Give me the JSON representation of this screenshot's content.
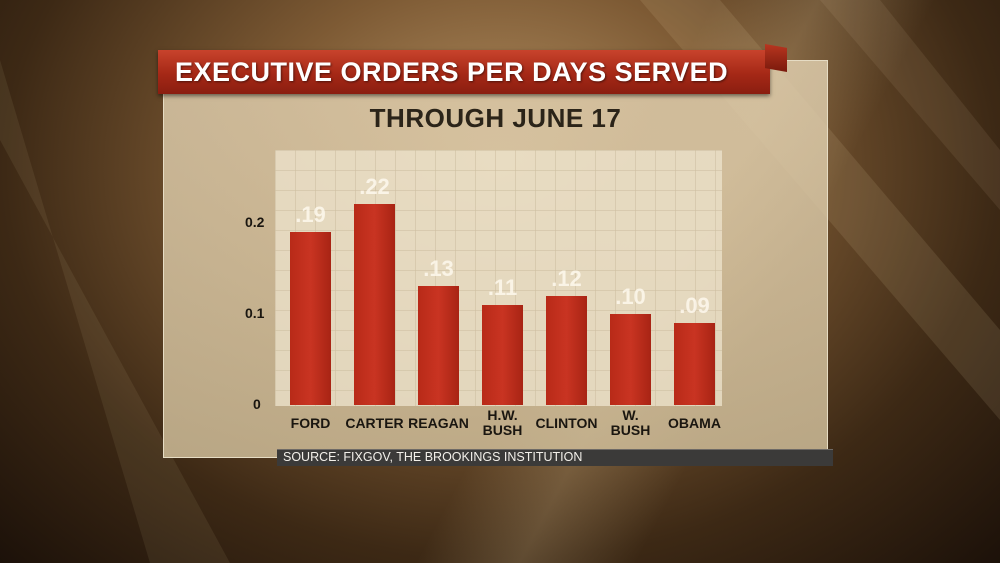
{
  "banner": {
    "title": "EXECUTIVE ORDERS PER DAYS SERVED"
  },
  "source": "SOURCE: FIXGOV, THE BROOKINGS INSTITUTION",
  "colors": {
    "bar": "#c0301c",
    "banner": "#a52816"
  },
  "chart_data": {
    "type": "bar",
    "title": "THROUGH JUNE 17",
    "xlabel": "",
    "ylabel": "",
    "categories": [
      "FORD",
      "CARTER",
      "REAGAN",
      "H.W. BUSH",
      "CLINTON",
      "W. BUSH",
      "OBAMA"
    ],
    "category_lines": [
      [
        "FORD"
      ],
      [
        "CARTER"
      ],
      [
        "REAGAN"
      ],
      [
        "H.W.",
        "BUSH"
      ],
      [
        "CLINTON"
      ],
      [
        "W.",
        "BUSH"
      ],
      [
        "OBAMA"
      ]
    ],
    "values": [
      0.19,
      0.22,
      0.13,
      0.11,
      0.12,
      0.1,
      0.09
    ],
    "data_labels": [
      ".19",
      ".22",
      ".13",
      ".11",
      ".12",
      ".10",
      ".09"
    ],
    "yticks": [
      "0",
      "0.1",
      "0.2"
    ],
    "ytick_values": [
      0,
      0.1,
      0.2
    ],
    "ylim": [
      0,
      0.22
    ],
    "grid": true,
    "legend": "none"
  }
}
